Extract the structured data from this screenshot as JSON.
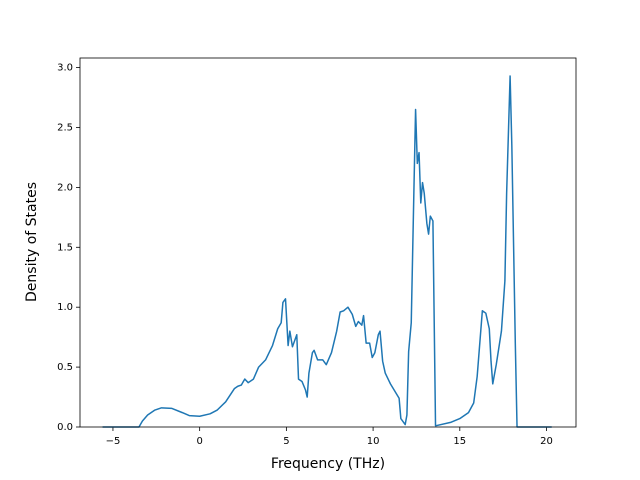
{
  "chart_data": {
    "type": "line",
    "xlabel": "Frequency (THz)",
    "ylabel": "Density of States",
    "xlim": [
      -6.9,
      21.7
    ],
    "ylim": [
      0,
      3.08
    ],
    "xticks": [
      {
        "value": -5,
        "label": "−5"
      },
      0,
      5,
      10,
      15,
      20
    ],
    "yticks": [
      {
        "value": 0,
        "label": "0.0"
      },
      {
        "value": 0.5,
        "label": "0.5"
      },
      {
        "value": 1,
        "label": "1.0"
      },
      {
        "value": 1.5,
        "label": "1.5"
      },
      {
        "value": 2,
        "label": "2.0"
      },
      {
        "value": 2.5,
        "label": "2.5"
      },
      {
        "value": 3,
        "label": "3.0"
      }
    ],
    "x": [
      -5.6,
      -3.5,
      -3.3,
      -3.0,
      -2.6,
      -2.2,
      -1.6,
      -1.0,
      -0.6,
      0,
      0.6,
      1.0,
      1.5,
      2.0,
      2.2,
      2.4,
      2.6,
      2.8,
      3.1,
      3.4,
      3.8,
      4.2,
      4.5,
      4.7,
      4.8,
      4.95,
      5.1,
      5.2,
      5.35,
      5.6,
      5.7,
      5.9,
      6.1,
      6.2,
      6.3,
      6.5,
      6.6,
      6.8,
      7.1,
      7.3,
      7.6,
      7.9,
      8.1,
      8.3,
      8.55,
      8.8,
      9.0,
      9.15,
      9.35,
      9.45,
      9.6,
      9.8,
      9.95,
      10.1,
      10.3,
      10.4,
      10.55,
      10.7,
      11.0,
      11.5,
      11.6,
      11.85,
      11.95,
      12.05,
      12.2,
      12.35,
      12.45,
      12.55,
      12.65,
      12.75,
      12.85,
      12.95,
      13.1,
      13.2,
      13.3,
      13.45,
      13.6,
      14.5,
      15.0,
      15.5,
      15.8,
      16.0,
      16.3,
      16.5,
      16.7,
      16.8,
      16.9,
      17.1,
      17.4,
      17.6,
      17.7,
      17.9,
      18.0,
      18.2,
      18.3,
      20.3
    ],
    "series": [
      {
        "color": "#1f77b4",
        "values": [
          0,
          0,
          0.05,
          0.1,
          0.14,
          0.16,
          0.155,
          0.12,
          0.095,
          0.09,
          0.11,
          0.14,
          0.21,
          0.32,
          0.34,
          0.35,
          0.4,
          0.37,
          0.4,
          0.5,
          0.56,
          0.68,
          0.82,
          0.87,
          1.04,
          1.07,
          0.68,
          0.8,
          0.67,
          0.77,
          0.4,
          0.38,
          0.31,
          0.25,
          0.45,
          0.62,
          0.64,
          0.56,
          0.56,
          0.52,
          0.62,
          0.8,
          0.96,
          0.97,
          1.0,
          0.94,
          0.84,
          0.88,
          0.85,
          0.93,
          0.7,
          0.7,
          0.58,
          0.62,
          0.77,
          0.8,
          0.55,
          0.45,
          0.36,
          0.24,
          0.07,
          0.02,
          0.1,
          0.63,
          0.87,
          1.95,
          2.65,
          2.2,
          2.29,
          1.87,
          2.04,
          1.95,
          1.7,
          1.61,
          1.76,
          1.72,
          0.01,
          0.04,
          0.07,
          0.12,
          0.2,
          0.42,
          0.97,
          0.95,
          0.82,
          0.55,
          0.36,
          0.52,
          0.8,
          1.22,
          1.95,
          2.93,
          2.35,
          0.7,
          0,
          0
        ]
      }
    ]
  }
}
